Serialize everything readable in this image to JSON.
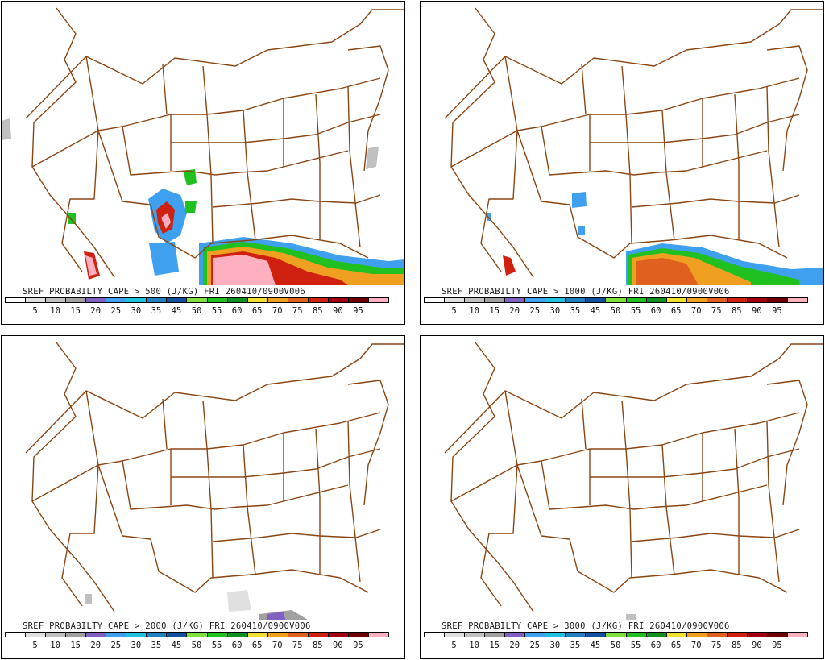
{
  "panels": [
    {
      "title": "SREF PROBABILTY CAPE > 500 (J/KG) FRI 260410/0900V006"
    },
    {
      "title": "SREF PROBABILTY CAPE > 1000 (J/KG) FRI 260410/0900V006"
    },
    {
      "title": "SREF PROBABILTY CAPE > 2000 (J/KG) FRI 260410/0900V006"
    },
    {
      "title": "SREF PROBABILTY CAPE > 3000 (J/KG) FRI 260410/0900V006"
    }
  ],
  "colorbar": {
    "labels": [
      "5",
      "10",
      "15",
      "20",
      "25",
      "30",
      "35",
      "45",
      "50",
      "55",
      "60",
      "65",
      "70",
      "75",
      "85",
      "90",
      "95"
    ],
    "colors": [
      "#ffffff",
      "#e0e0e0",
      "#c0c0c0",
      "#a0a0a0",
      "#8060c0",
      "#40a0f0",
      "#20c0e0",
      "#2080c0",
      "#1050a0",
      "#80e040",
      "#20c020",
      "#109020",
      "#f0e030",
      "#f0a020",
      "#e06020",
      "#d02010",
      "#a00010",
      "#700000",
      "#ffb0c0"
    ]
  },
  "border_color": "#8b4513"
}
